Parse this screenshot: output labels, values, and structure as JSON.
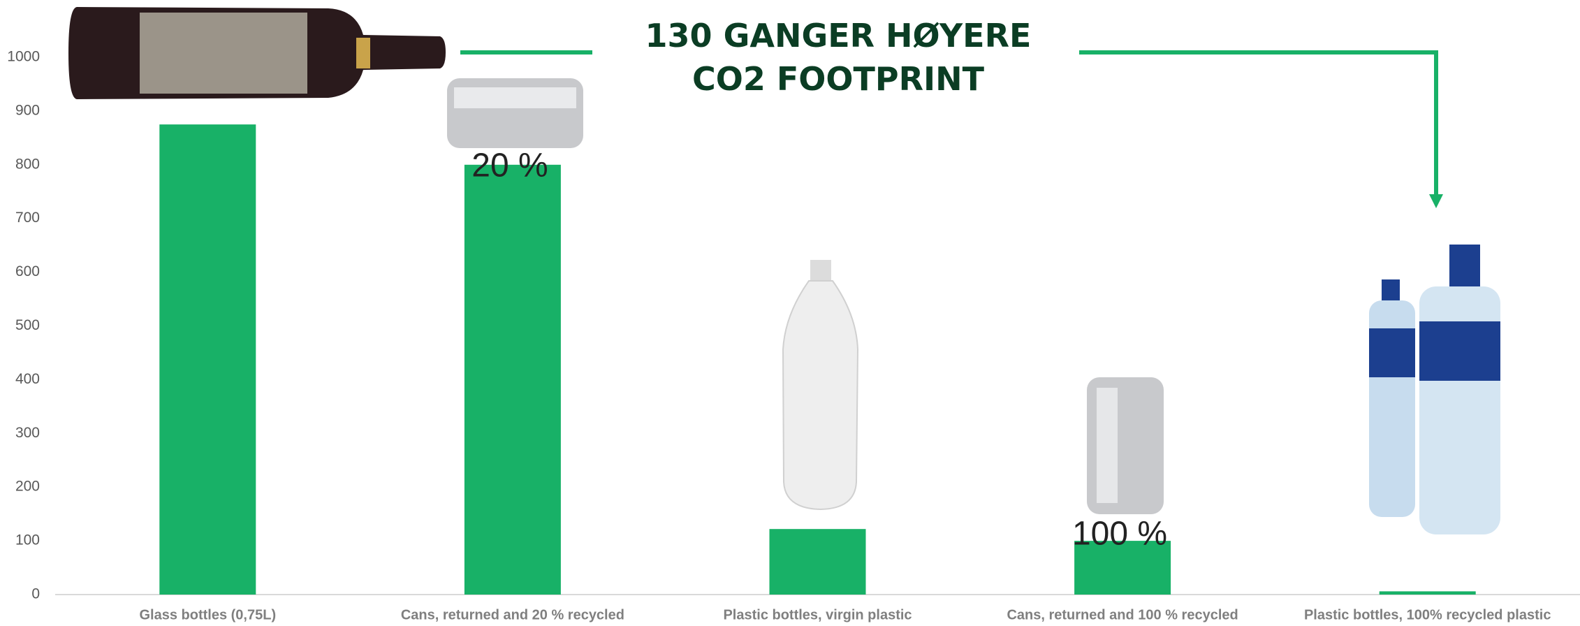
{
  "chart_data": {
    "type": "bar",
    "title": "130 GANGER HØYERE CO2 FOOTPRINT",
    "categories": [
      "Glass bottles (0,75L)",
      "Cans, returned and 20 % recycled",
      "Plastic bottles, virgin plastic",
      "Cans, returned and 100 % recycled",
      "Plastic bottles, 100% recycled plastic"
    ],
    "values": [
      875,
      800,
      122,
      100,
      6
    ],
    "color": "#18b167",
    "ylim": [
      0,
      1000
    ],
    "yticks": [
      0,
      100,
      200,
      300,
      400,
      500,
      600,
      700,
      800,
      900,
      1000
    ],
    "grid": false,
    "annotations": [
      "20 %",
      "100 %"
    ]
  }
}
